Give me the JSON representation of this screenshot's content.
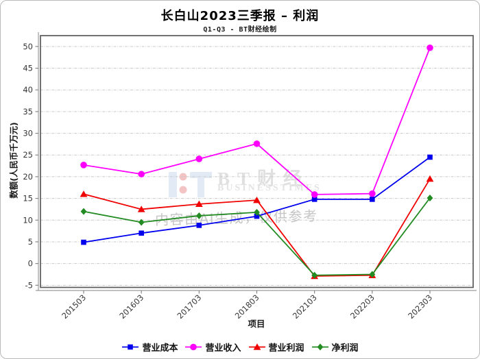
{
  "watermark": {
    "brand_cn": "BT财经",
    "brand_en": "BUSINESSTIMES",
    "disclaimer": "内容由AI生成，仅供参考"
  },
  "chart_data": {
    "type": "line",
    "title": "长白山2023三季报 – 利润",
    "subtitle": "Q1-Q3 - BT财经绘制",
    "xlabel": "项目",
    "ylabel": "数额(人民币千万元)",
    "categories": [
      "201503",
      "201603",
      "201703",
      "201803",
      "202103",
      "202203",
      "202303"
    ],
    "series": [
      {
        "name": "营业成本",
        "color": "#0000ee",
        "marker": "square",
        "values": [
          4.9,
          7.0,
          8.8,
          10.9,
          14.8,
          14.8,
          24.5
        ]
      },
      {
        "name": "营业收入",
        "color": "#ff00ff",
        "marker": "circle",
        "values": [
          22.7,
          20.6,
          24.1,
          27.6,
          15.9,
          16.1,
          49.7
        ]
      },
      {
        "name": "营业利润",
        "color": "#f00000",
        "marker": "triangle",
        "values": [
          16.0,
          12.5,
          13.7,
          14.6,
          -2.9,
          -2.7,
          19.5
        ]
      },
      {
        "name": "净利润",
        "color": "#228b22",
        "marker": "diamond",
        "values": [
          12.0,
          9.5,
          11.0,
          11.8,
          -2.7,
          -2.5,
          15.1
        ]
      }
    ],
    "ylim": [
      -5.5,
      52.5
    ],
    "yticks": [
      -5,
      0,
      5,
      10,
      15,
      20,
      25,
      30,
      35,
      40,
      45,
      50
    ],
    "grid": true,
    "grid_style": "dashed",
    "legend_position": "bottom"
  }
}
